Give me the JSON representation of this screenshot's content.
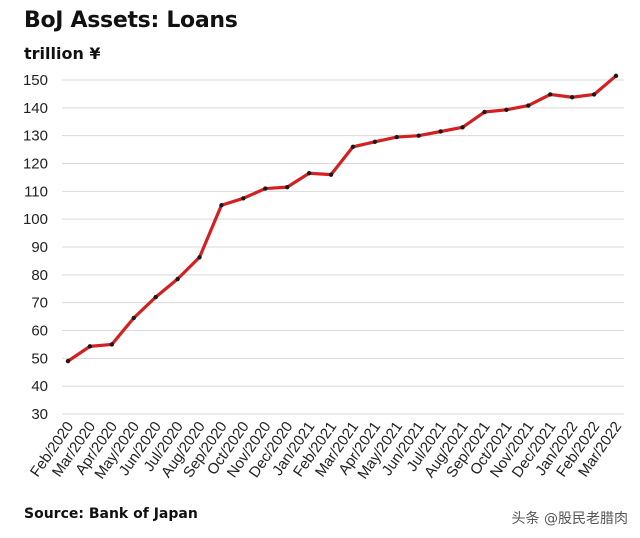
{
  "chart_data": {
    "type": "line",
    "title": "BoJ Assets: Loans",
    "ylabel": "trillion ¥",
    "xlabel": "",
    "ylim": [
      30,
      150
    ],
    "yticks": [
      30,
      40,
      50,
      60,
      70,
      80,
      90,
      100,
      110,
      120,
      130,
      140,
      150
    ],
    "grid": "horizontal",
    "line_color": "#d42020",
    "marker_color": "#1a1a1a",
    "categories": [
      "Feb/2020",
      "Mar/2020",
      "Apr/2020",
      "May/2020",
      "Jun/2020",
      "Jul/2020",
      "Aug/2020",
      "Sep/2020",
      "Oct/2020",
      "Nov/2020",
      "Dec/2020",
      "Jan/2021",
      "Feb/2021",
      "Mar/2021",
      "Apr/2021",
      "May/2021",
      "Jun/2021",
      "Jul/2021",
      "Aug/2021",
      "Sep/2021",
      "Oct/2021",
      "Nov/2021",
      "Dec/2021",
      "Jan/2022",
      "Feb/2022",
      "Mar/2022"
    ],
    "values": [
      49,
      54.3,
      55,
      64.5,
      72,
      78.5,
      86.3,
      105,
      107.5,
      111,
      111.5,
      116.5,
      116,
      126,
      127.8,
      129.5,
      130,
      131.5,
      133,
      138.5,
      139.3,
      140.8,
      144.8,
      143.8,
      144.8,
      151.5
    ]
  },
  "source": "Source: Bank of Japan",
  "watermark": "头条 @股民老腊肉"
}
